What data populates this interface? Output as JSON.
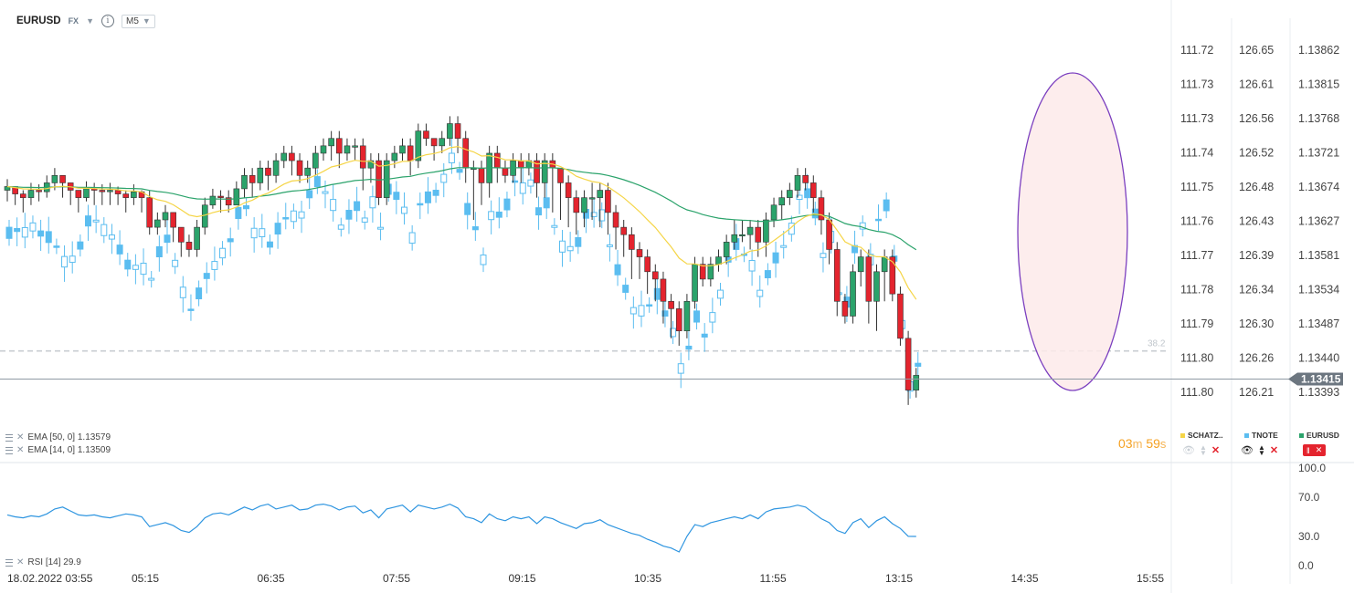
{
  "header": {
    "symbol": "EURUSD",
    "asset_class": "FX",
    "timeframe": "M5"
  },
  "indicators": {
    "ema50": "EMA [50, 0]  1.13579",
    "ema14": "EMA [14, 0]  1.13509",
    "rsi": "RSI [14]  29.9"
  },
  "timer": {
    "min": "03",
    "min_unit": "m",
    "sec": "59",
    "sec_unit": "s"
  },
  "legend": {
    "schatz": "SCHATZ..",
    "tnote": "TNOTE",
    "eurusd": "EURUSD"
  },
  "colors": {
    "up": "#2ba36b",
    "down": "#e4242e",
    "tnote": "#5bbdf0",
    "ema14": "#f5d547",
    "ema50": "#2ba36b",
    "rsi": "#2e95e0",
    "ellipse": "#7b3fbf",
    "ellipse_fill": "#fdeaea",
    "schatz": "#f5d547"
  },
  "chart_data": [
    {
      "type": "line",
      "title": "EURUSD M5 candlestick",
      "x_labels": [
        "18.02.2022  03:55",
        "05:15",
        "06:35",
        "07:55",
        "09:15",
        "10:35",
        "11:55",
        "13:15",
        "14:35",
        "15:55"
      ],
      "axes": [
        {
          "name": "SCHATZ",
          "ticks": [
            "111.72",
            "111.73",
            "111.73",
            "111.74",
            "111.75",
            "111.76",
            "111.77",
            "111.78",
            "111.79",
            "111.80",
            "111.80"
          ]
        },
        {
          "name": "TNOTE",
          "ticks": [
            "126.65",
            "126.61",
            "126.56",
            "126.52",
            "126.48",
            "126.43",
            "126.39",
            "126.34",
            "126.30",
            "126.26",
            "126.21"
          ]
        },
        {
          "name": "EURUSD",
          "ticks": [
            "1.13862",
            "1.13815",
            "1.13768",
            "1.13721",
            "1.13674",
            "1.13627",
            "1.13581",
            "1.13534",
            "1.13487",
            "1.13440",
            "1.13393"
          ],
          "range": [
            1.1337,
            1.1389
          ]
        }
      ],
      "current_price": "1.13415",
      "fib_level": "38.2",
      "fib_price": 1.13453,
      "series": [
        {
          "name": "EURUSD",
          "kind": "candles",
          "close": [
            1.13675,
            1.13665,
            1.1366,
            1.1367,
            1.13668,
            1.1368,
            1.1369,
            1.1368,
            1.1367,
            1.1366,
            1.13672,
            1.1367,
            1.13668,
            1.1367,
            1.13665,
            1.1366,
            1.13668,
            1.1366,
            1.1362,
            1.1363,
            1.1364,
            1.1362,
            1.136,
            1.1359,
            1.1362,
            1.1365,
            1.13662,
            1.1366,
            1.1365,
            1.13672,
            1.1369,
            1.1368,
            1.137,
            1.1369,
            1.1371,
            1.1372,
            1.1371,
            1.1369,
            1.137,
            1.1372,
            1.1373,
            1.1374,
            1.1372,
            1.1373,
            1.1373,
            1.137,
            1.1371,
            1.1366,
            1.1371,
            1.1372,
            1.1373,
            1.1371,
            1.1375,
            1.1374,
            1.1373,
            1.1374,
            1.1376,
            1.1374,
            1.137,
            1.137,
            1.1368,
            1.1372,
            1.137,
            1.1369,
            1.1371,
            1.137,
            1.1371,
            1.1368,
            1.1371,
            1.137,
            1.1368,
            1.1366,
            1.1364,
            1.1366,
            1.1366,
            1.1367,
            1.1364,
            1.1362,
            1.1361,
            1.1359,
            1.1358,
            1.1356,
            1.1355,
            1.1352,
            1.1351,
            1.1348,
            1.1352,
            1.1357,
            1.1355,
            1.1357,
            1.1358,
            1.136,
            1.1361,
            1.1361,
            1.1362,
            1.136,
            1.1363,
            1.1365,
            1.1366,
            1.1367,
            1.1369,
            1.1368,
            1.1366,
            1.1363,
            1.1359,
            1.1352,
            1.135,
            1.1356,
            1.1358,
            1.1352,
            1.1356,
            1.1358,
            1.1353,
            1.1347,
            1.134,
            1.1342
          ],
          "high": [
            1.13685,
            1.13675,
            1.1367,
            1.1368,
            1.13678,
            1.1369,
            1.137,
            1.1369,
            1.1368,
            1.1367,
            1.13682,
            1.1368,
            1.13678,
            1.1368,
            1.13675,
            1.1367,
            1.13678,
            1.1367,
            1.1367,
            1.1364,
            1.1365,
            1.1364,
            1.1362,
            1.1361,
            1.1363,
            1.1366,
            1.13672,
            1.1367,
            1.1367,
            1.13682,
            1.137,
            1.137,
            1.1371,
            1.1371,
            1.1372,
            1.1373,
            1.1373,
            1.1372,
            1.1371,
            1.1373,
            1.1374,
            1.1375,
            1.1375,
            1.1374,
            1.1374,
            1.1374,
            1.1372,
            1.1372,
            1.1372,
            1.1373,
            1.1374,
            1.1374,
            1.1376,
            1.1376,
            1.1374,
            1.1375,
            1.1377,
            1.1377,
            1.1375,
            1.1371,
            1.1371,
            1.1373,
            1.1373,
            1.1371,
            1.1372,
            1.1372,
            1.1372,
            1.1372,
            1.1372,
            1.1372,
            1.137,
            1.1369,
            1.1367,
            1.1367,
            1.1368,
            1.1368,
            1.1368,
            1.1365,
            1.1363,
            1.1362,
            1.136,
            1.1359,
            1.1357,
            1.1356,
            1.1353,
            1.1352,
            1.1353,
            1.1358,
            1.1358,
            1.1358,
            1.1359,
            1.1361,
            1.1363,
            1.1363,
            1.1363,
            1.1363,
            1.1364,
            1.1366,
            1.1367,
            1.1368,
            1.137,
            1.137,
            1.1369,
            1.1367,
            1.1364,
            1.136,
            1.1353,
            1.1357,
            1.1359,
            1.1359,
            1.1357,
            1.1359,
            1.1359,
            1.1354,
            1.1348,
            1.1343
          ],
          "low": [
            1.13655,
            1.1365,
            1.1364,
            1.1365,
            1.13655,
            1.1366,
            1.1367,
            1.1366,
            1.1365,
            1.1364,
            1.13655,
            1.1365,
            1.1365,
            1.1365,
            1.1365,
            1.1364,
            1.1365,
            1.1364,
            1.1361,
            1.1361,
            1.1362,
            1.136,
            1.1358,
            1.1358,
            1.1358,
            1.1361,
            1.13645,
            1.1364,
            1.1364,
            1.1365,
            1.1366,
            1.1366,
            1.1367,
            1.1367,
            1.1368,
            1.137,
            1.1369,
            1.1368,
            1.1368,
            1.1369,
            1.1371,
            1.1371,
            1.137,
            1.1371,
            1.1371,
            1.1367,
            1.1368,
            1.1365,
            1.1365,
            1.137,
            1.1371,
            1.1369,
            1.137,
            1.1373,
            1.1371,
            1.1372,
            1.1373,
            1.1372,
            1.1368,
            1.1363,
            1.1365,
            1.1366,
            1.1368,
            1.1368,
            1.1368,
            1.1368,
            1.1369,
            1.1366,
            1.1366,
            1.1364,
            1.1363,
            1.1362,
            1.1361,
            1.1362,
            1.1363,
            1.1362,
            1.1361,
            1.1359,
            1.1358,
            1.1355,
            1.1355,
            1.1353,
            1.1352,
            1.1349,
            1.1347,
            1.1346,
            1.1347,
            1.1351,
            1.1354,
            1.1354,
            1.1356,
            1.1357,
            1.1359,
            1.136,
            1.1359,
            1.1358,
            1.1358,
            1.1362,
            1.1363,
            1.1365,
            1.1366,
            1.1367,
            1.1364,
            1.1361,
            1.1357,
            1.135,
            1.1349,
            1.1349,
            1.1354,
            1.1349,
            1.1348,
            1.1352,
            1.1352,
            1.1346,
            1.1338,
            1.1339
          ],
          "open": [
            1.1367,
            1.13675,
            1.13665,
            1.1366,
            1.1367,
            1.13668,
            1.1368,
            1.1369,
            1.1368,
            1.1367,
            1.1366,
            1.13672,
            1.1367,
            1.13668,
            1.1367,
            1.13665,
            1.1366,
            1.13668,
            1.1366,
            1.1362,
            1.1363,
            1.1364,
            1.1362,
            1.136,
            1.1359,
            1.1362,
            1.1365,
            1.13662,
            1.1366,
            1.1365,
            1.13672,
            1.1369,
            1.1368,
            1.137,
            1.1369,
            1.1371,
            1.1372,
            1.1371,
            1.1369,
            1.137,
            1.1372,
            1.1373,
            1.1374,
            1.1372,
            1.1373,
            1.1373,
            1.137,
            1.1371,
            1.1366,
            1.1371,
            1.1372,
            1.1373,
            1.1371,
            1.1375,
            1.1374,
            1.1373,
            1.1374,
            1.1376,
            1.1374,
            1.137,
            1.137,
            1.1368,
            1.1372,
            1.137,
            1.1369,
            1.1371,
            1.137,
            1.1371,
            1.1368,
            1.1371,
            1.137,
            1.1368,
            1.1366,
            1.1364,
            1.1366,
            1.1366,
            1.1367,
            1.1364,
            1.1362,
            1.1361,
            1.1359,
            1.1358,
            1.1356,
            1.1355,
            1.1352,
            1.1351,
            1.1348,
            1.1352,
            1.1357,
            1.1355,
            1.1357,
            1.1358,
            1.136,
            1.1361,
            1.1361,
            1.1362,
            1.136,
            1.1363,
            1.1365,
            1.1366,
            1.1367,
            1.1369,
            1.1368,
            1.1366,
            1.1363,
            1.1359,
            1.1352,
            1.135,
            1.1356,
            1.1358,
            1.1352,
            1.1356,
            1.1358,
            1.1353,
            1.1347,
            1.134
          ]
        },
        {
          "name": "EMA 14",
          "values_note": "",
          "last": 1.13509
        },
        {
          "name": "EMA 50",
          "last": 1.13579
        }
      ]
    },
    {
      "type": "line",
      "title": "RSI [14]",
      "yticks": [
        "100.0",
        "70.0",
        "30.0",
        "0.0"
      ],
      "ylim": [
        0,
        100
      ],
      "series": [
        {
          "name": "RSI",
          "values": [
            52,
            50,
            49,
            51,
            50,
            53,
            58,
            60,
            56,
            52,
            51,
            52,
            50,
            49,
            51,
            53,
            52,
            50,
            40,
            42,
            44,
            41,
            36,
            34,
            40,
            49,
            53,
            54,
            52,
            56,
            60,
            57,
            61,
            63,
            58,
            60,
            62,
            57,
            58,
            62,
            63,
            61,
            57,
            60,
            61,
            54,
            57,
            49,
            58,
            60,
            62,
            55,
            62,
            60,
            58,
            60,
            63,
            59,
            50,
            48,
            44,
            53,
            48,
            46,
            50,
            48,
            50,
            43,
            50,
            48,
            44,
            41,
            38,
            43,
            44,
            47,
            42,
            39,
            36,
            33,
            31,
            27,
            24,
            20,
            18,
            14,
            30,
            42,
            40,
            44,
            46,
            48,
            50,
            48,
            52,
            48,
            55,
            58,
            59,
            60,
            62,
            60,
            54,
            48,
            44,
            36,
            33,
            44,
            48,
            39,
            46,
            50,
            43,
            38,
            30,
            29.9
          ]
        }
      ]
    }
  ]
}
